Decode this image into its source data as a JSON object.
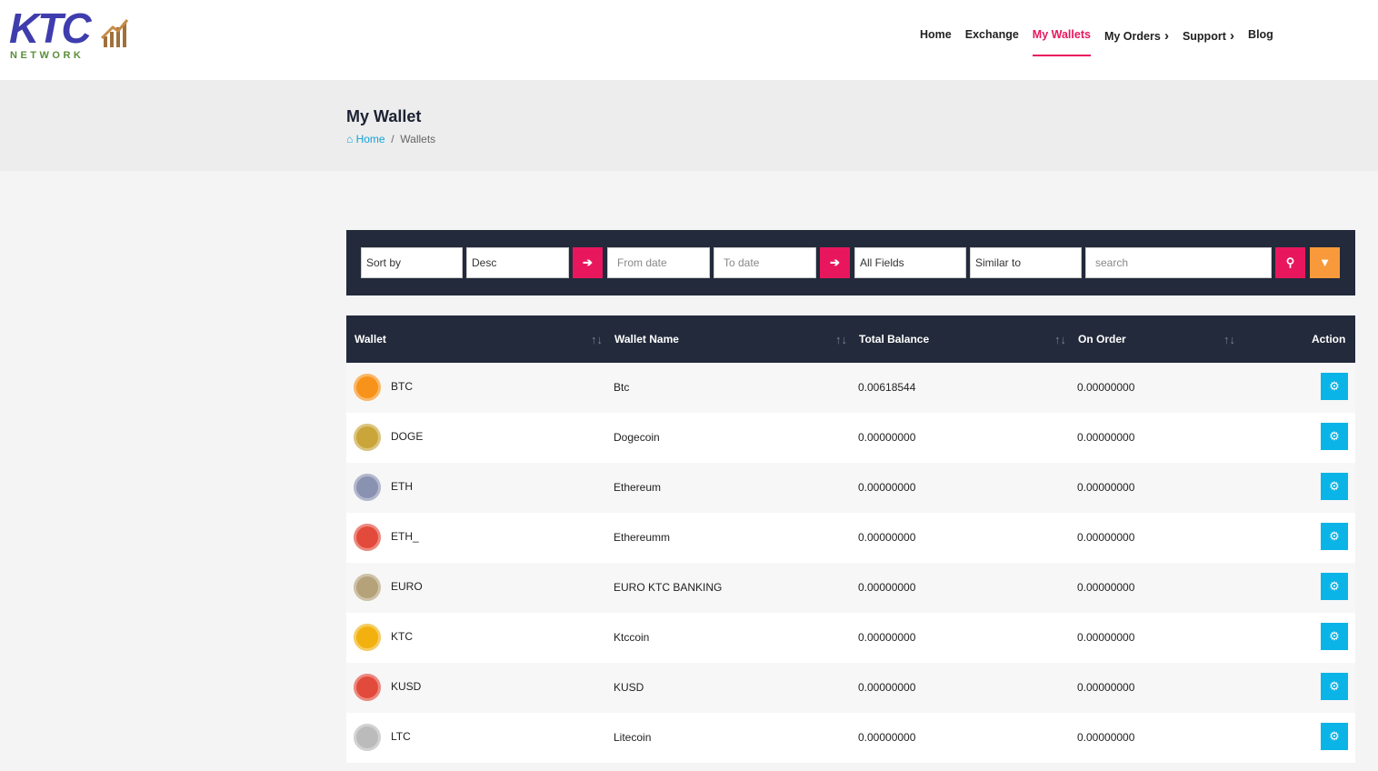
{
  "logo": {
    "title": "KTC",
    "subtitle": "NETWORK"
  },
  "nav": [
    "Home",
    "Exchange",
    "My Wallets",
    "My Orders",
    "Support",
    "Blog"
  ],
  "page": {
    "title": "My Wallet",
    "breadcrumb": [
      "Home",
      "Wallets"
    ]
  },
  "filters": {
    "sort_by": "Sort by",
    "order": "Desc",
    "from_date": "From date",
    "to_date": "To date",
    "fields": "All Fields",
    "match": "Similar to",
    "search": "search"
  },
  "table": {
    "columns": [
      "Wallet",
      "Wallet Name",
      "Total Balance",
      "On Order",
      "Action"
    ],
    "rows": [
      [
        "BTC",
        "Btc",
        "0.00618544",
        "0.00000000"
      ],
      [
        "DOGE",
        "Dogecoin",
        "0.00000000",
        "0.00000000"
      ],
      [
        "ETH",
        "Ethereum",
        "0.00000000",
        "0.00000000"
      ],
      [
        "ETH_",
        "Ethereumm",
        "0.00000000",
        "0.00000000"
      ],
      [
        "EURO",
        "EURO KTC BANKING",
        "0.00000000",
        "0.00000000"
      ],
      [
        "KTC",
        "Ktccoin",
        "0.00000000",
        "0.00000000"
      ],
      [
        "KUSD",
        "KUSD",
        "0.00000000",
        "0.00000000"
      ],
      [
        "LTC",
        "Litecoin",
        "0.00000000",
        "0.00000000"
      ]
    ]
  }
}
